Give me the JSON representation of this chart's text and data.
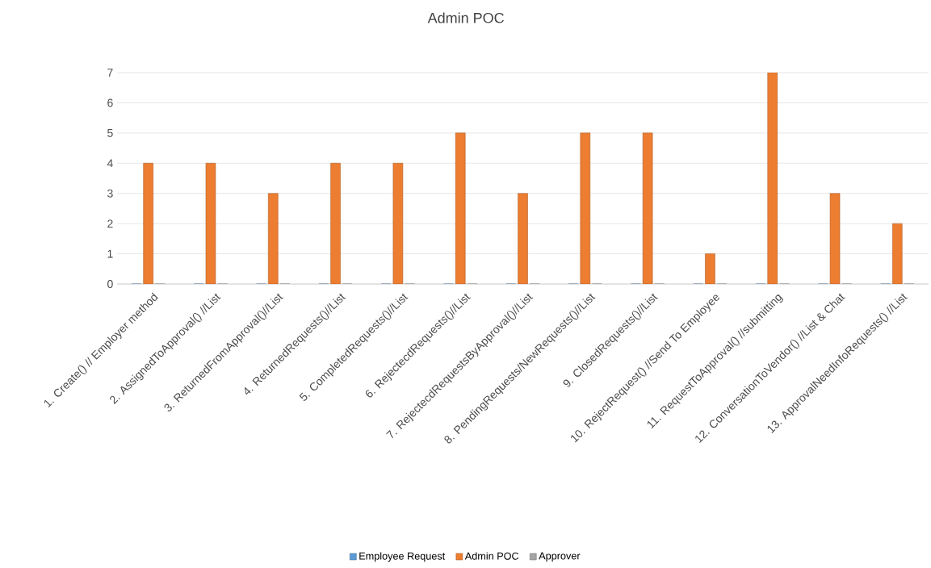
{
  "chart_data": {
    "type": "bar",
    "title": "Admin POC",
    "categories": [
      "1. Create() // Employer method",
      "2. AssignedToApproval() //List",
      "3. ReturnedFromApproval()//List",
      "4. ReturnedRequests()//List",
      "5. CompletedRequests()//List",
      "6. RejectecdRequests()//List",
      "7. RejectecdRequestsByApproval()//List",
      "8. PendingRequests/NewRequests()//List",
      "9. ClosedRequests()//List",
      "10. RejectRequest() //Send To Employee",
      "11. RequestToApproval() //submitting",
      "12. ConversationToVendor() //List & Chat",
      "13. ApprovalNeedInfoRequests() //List"
    ],
    "series": [
      {
        "name": "Employee Request",
        "color": "#5b9bd5",
        "values": [
          0,
          0,
          0,
          0,
          0,
          0,
          0,
          0,
          0,
          0,
          0,
          0,
          0
        ]
      },
      {
        "name": "Admin POC",
        "color": "#ed7d31",
        "values": [
          4,
          4,
          3,
          4,
          4,
          5,
          3,
          5,
          5,
          1,
          7,
          3,
          2
        ]
      },
      {
        "name": "Approver",
        "color": "#a5a5a5",
        "values": [
          0,
          0,
          0,
          0,
          0,
          0,
          0,
          0,
          0,
          0,
          0,
          0,
          0
        ]
      }
    ],
    "ylim": [
      0,
      7
    ],
    "yticks": [
      0,
      1,
      2,
      3,
      4,
      5,
      6,
      7
    ],
    "grid": "y",
    "legend": "bottom"
  }
}
